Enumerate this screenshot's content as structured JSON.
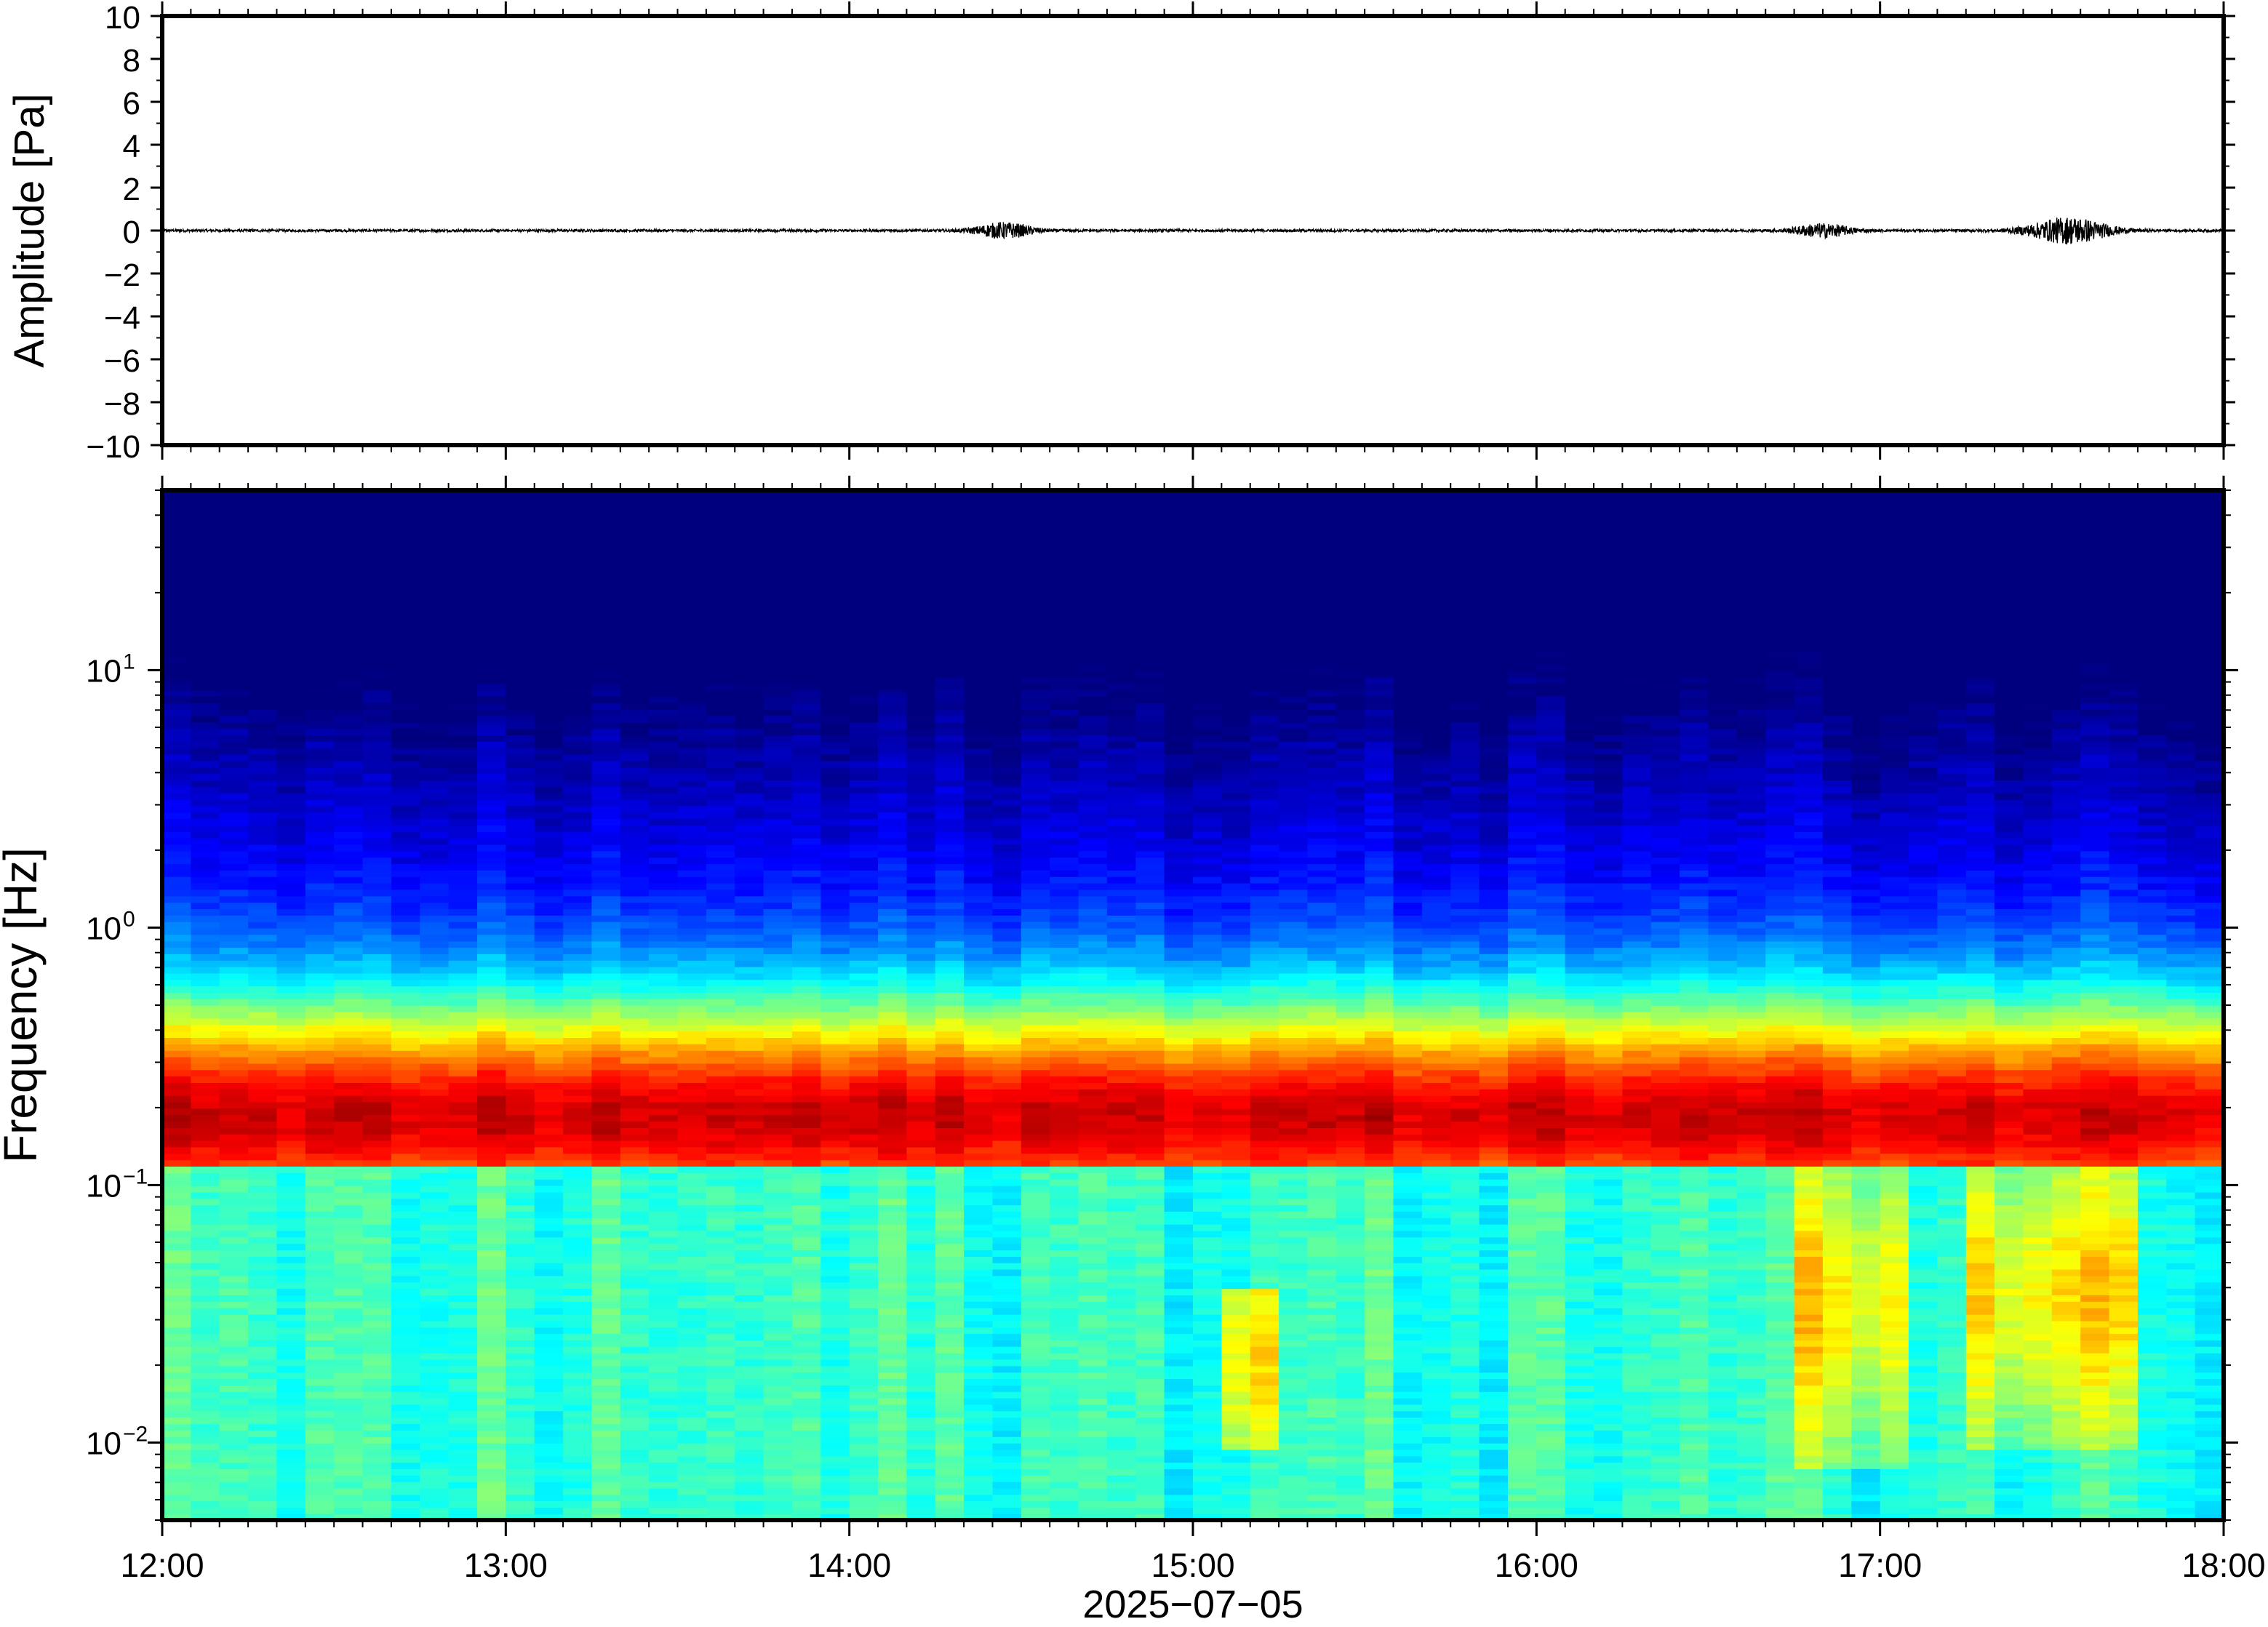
{
  "chart_data": [
    {
      "type": "line",
      "panel": "waveform",
      "ylabel": "Amplitude [Pa]",
      "ylim": [
        -10,
        10
      ],
      "yticks": [
        -10,
        -8,
        -6,
        -4,
        -2,
        0,
        2,
        4,
        6,
        8,
        10
      ],
      "ytick_labels": [
        "−10",
        "−8",
        "−6",
        "−4",
        "−2",
        "0",
        "2",
        "4",
        "6",
        "8",
        "10"
      ],
      "xlim": [
        "12:00",
        "18:00"
      ],
      "baseline": 0,
      "noise_level": 0.06,
      "bursts": [
        {
          "time": "14:27",
          "half_width_min": 5,
          "amplitude": 0.35
        },
        {
          "time": "16:50",
          "half_width_min": 5,
          "amplitude": 0.3
        },
        {
          "time": "17:33",
          "half_width_min": 7,
          "amplitude": 0.6
        }
      ],
      "line_color": "#000000"
    },
    {
      "type": "heatmap",
      "panel": "spectrogram",
      "ylabel": "Frequency [Hz]",
      "yscale": "log",
      "ylim_hz": [
        0.005,
        50
      ],
      "yticks_hz": [
        0.01,
        0.1,
        1,
        10
      ],
      "ytick_labels": [
        {
          "base": "10",
          "exp": "−2"
        },
        {
          "base": "10",
          "exp": "−1"
        },
        {
          "base": "10",
          "exp": "0"
        },
        {
          "base": "10",
          "exp": "1"
        }
      ],
      "colormap": "jet",
      "colormap_stops": [
        "#00007f",
        "#0000ff",
        "#007fff",
        "#00ffff",
        "#7fff7f",
        "#ffff00",
        "#ff7f00",
        "#ff0000",
        "#7f0000"
      ],
      "time_bins": 72,
      "features": {
        "microbarom_band_hz": [
          0.12,
          0.3
        ],
        "quiet_high_freq_until": "14:25",
        "low_freq_energy_events": [
          {
            "start": "15:05",
            "end": "15:13",
            "f_hz": [
              0.012,
              0.04
            ]
          },
          {
            "start": "16:45",
            "end": "17:02",
            "f_hz": [
              0.01,
              0.12
            ]
          },
          {
            "start": "17:15",
            "end": "17:42",
            "f_hz": [
              0.012,
              0.12
            ]
          }
        ]
      }
    }
  ],
  "x_axis": {
    "tick_labels": [
      "12:00",
      "13:00",
      "14:00",
      "15:00",
      "16:00",
      "17:00",
      "18:00"
    ],
    "xlabel": "2025−07−05"
  }
}
